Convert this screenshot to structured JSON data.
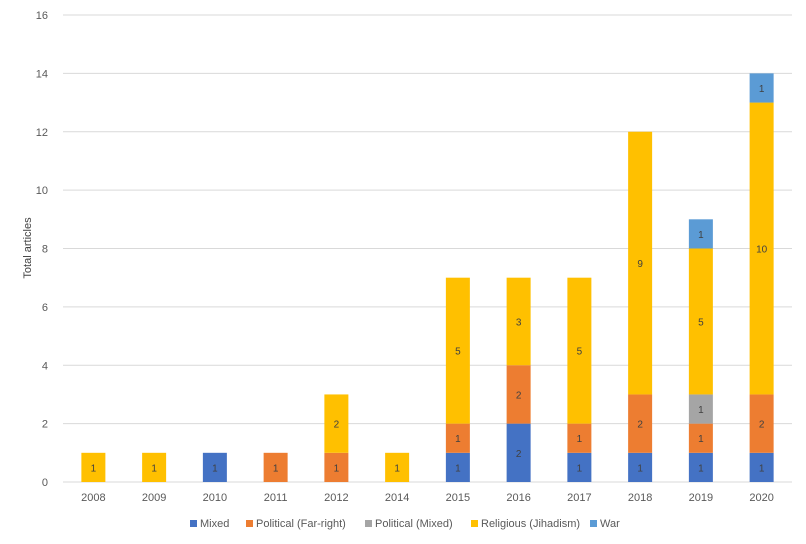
{
  "chart_data": {
    "type": "bar",
    "stacked": true,
    "categories": [
      "2008",
      "2009",
      "2010",
      "2011",
      "2012",
      "2014",
      "2015",
      "2016",
      "2017",
      "2018",
      "2019",
      "2020"
    ],
    "series": [
      {
        "name": "Mixed",
        "color": "#4472C4",
        "values": [
          0,
          0,
          1,
          0,
          0,
          0,
          1,
          2,
          1,
          1,
          1,
          1
        ]
      },
      {
        "name": "Political (Far-right)",
        "color": "#ED7D31",
        "values": [
          0,
          0,
          0,
          1,
          1,
          0,
          1,
          2,
          1,
          2,
          1,
          2
        ]
      },
      {
        "name": "Political (Mixed)",
        "color": "#A5A5A5",
        "values": [
          0,
          0,
          0,
          0,
          0,
          0,
          0,
          0,
          0,
          0,
          1,
          0
        ]
      },
      {
        "name": "Religious (Jihadism)",
        "color": "#FFC000",
        "values": [
          1,
          1,
          0,
          0,
          2,
          1,
          5,
          3,
          5,
          9,
          5,
          10
        ]
      },
      {
        "name": "War",
        "color": "#5B9BD5",
        "values": [
          0,
          0,
          0,
          0,
          0,
          0,
          0,
          0,
          0,
          0,
          1,
          1
        ]
      }
    ],
    "ylabel": "Total articles",
    "xlabel": "",
    "ylim": [
      0,
      16
    ],
    "yticks": [
      0,
      2,
      4,
      6,
      8,
      10,
      12,
      14,
      16
    ],
    "grid": true,
    "legend_position": "bottom"
  }
}
